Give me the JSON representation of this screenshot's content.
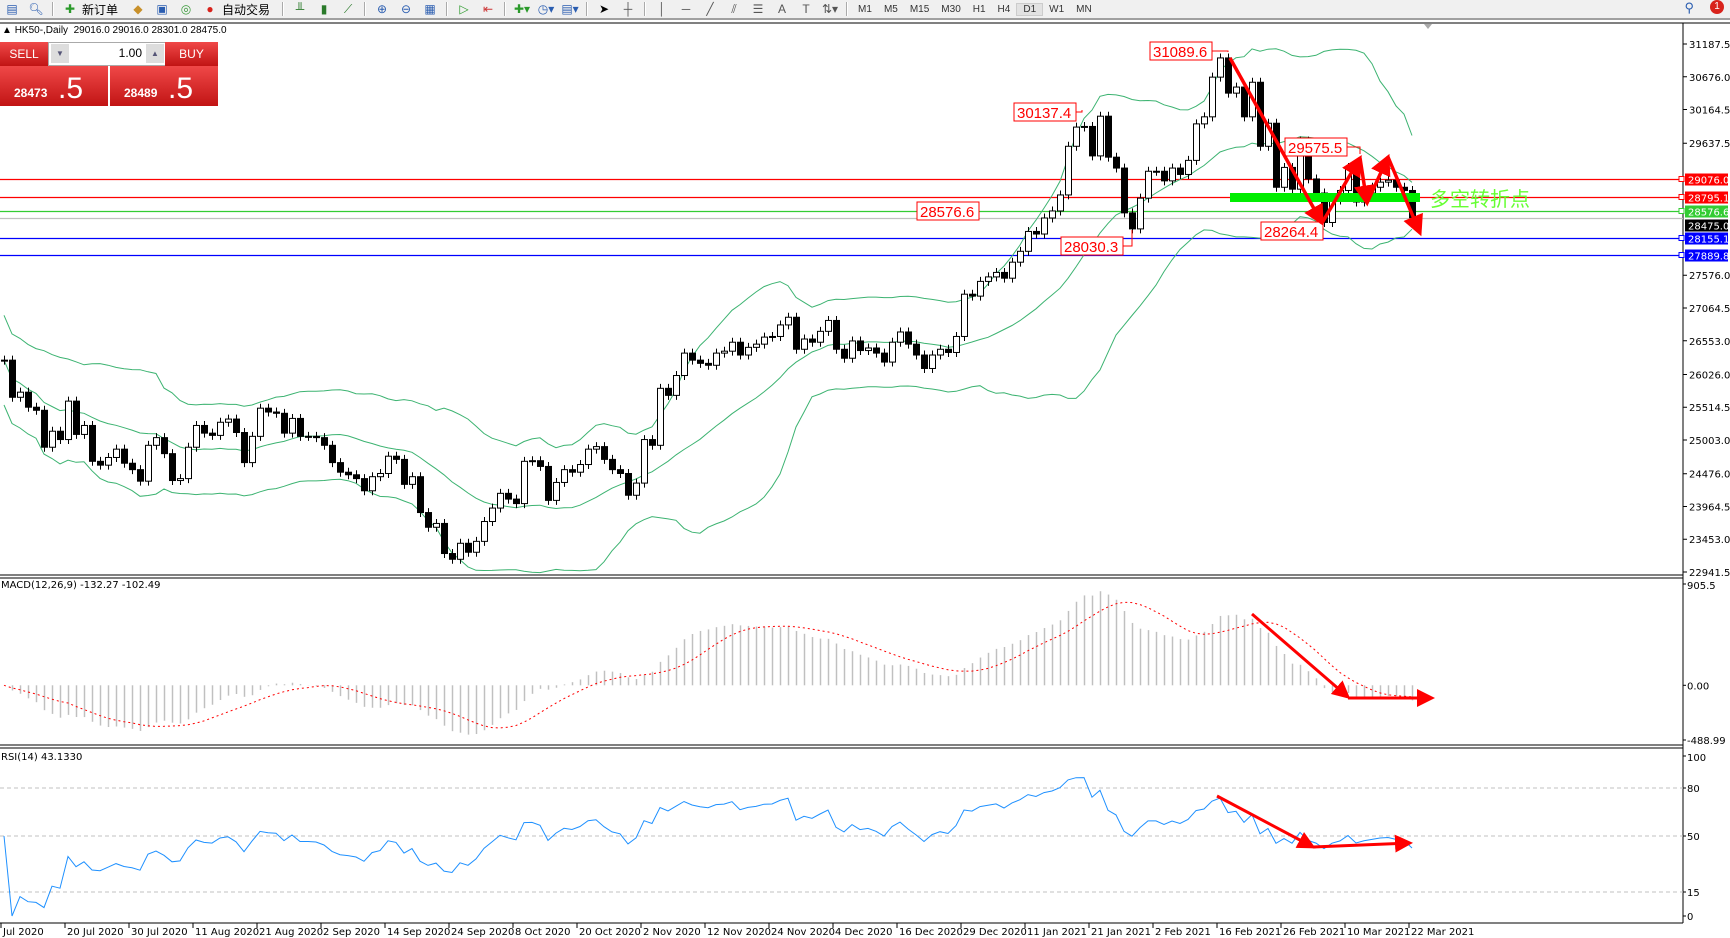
{
  "toolbar": {
    "new_order": "新订单",
    "auto_trading": "自动交易",
    "timeframes": [
      "M1",
      "M5",
      "M15",
      "M30",
      "H1",
      "H4",
      "D1",
      "W1",
      "MN"
    ],
    "active_timeframe": "D1",
    "notifications": "1",
    "icons": [
      "list-icon",
      "zoom-icon",
      "new-order-icon",
      "bucket-icon",
      "server-icon",
      "signal-icon",
      "auto-trading-icon",
      "bar-chart-icon",
      "candle-chart-icon",
      "line-chart-icon",
      "zoom-in-icon",
      "zoom-out-icon",
      "tile-icon",
      "scroll-icon",
      "shift-icon",
      "indicators-icon",
      "period-icon",
      "templates-icon",
      "cursor-icon",
      "crosshair-icon",
      "vline-icon",
      "hline-icon",
      "trendline-icon",
      "channel-icon",
      "fibo-icon",
      "text-icon",
      "label-icon",
      "arrows-icon"
    ]
  },
  "chart_header": {
    "symbol": "HK50-,Daily",
    "ohlc": "29016.0 29016.0 28301.0 28475.0"
  },
  "trade_panel": {
    "sell": "SELL",
    "buy": "BUY",
    "lot": "1.00",
    "sell_price_main": "28473",
    "sell_price_big": ".5",
    "buy_price_main": "28489",
    "buy_price_big": ".5"
  },
  "colors": {
    "bull_body": "#ffffff",
    "bear_body": "#000000",
    "bands": "#3cb371",
    "resistance": "#ff0000",
    "support": "#0000ff",
    "pivot": "#33cc33",
    "current": "#c0c0c0",
    "arrows": "#ff0000",
    "zone": "#00ee00",
    "rsi": "#1e90ff",
    "macd_hist": "#c0c0c0",
    "macd_signal": "#ff0000"
  },
  "chart_data": [
    {
      "type": "candlestick",
      "symbol": "HK50-",
      "timeframe": "Daily",
      "closes": [
        26250,
        25670,
        25750,
        25515,
        25467,
        24890,
        25140,
        25010,
        25610,
        25090,
        25230,
        24670,
        24610,
        24730,
        24860,
        24640,
        24540,
        24360,
        24920,
        25040,
        24790,
        24370,
        24400,
        24890,
        25230,
        25110,
        25075,
        25280,
        25330,
        25120,
        24650,
        25060,
        25500,
        25440,
        25420,
        25110,
        25340,
        25060,
        25060,
        25040,
        24920,
        24650,
        24500,
        24460,
        24400,
        24210,
        24430,
        24480,
        24750,
        24700,
        24310,
        24430,
        23870,
        23640,
        23700,
        23230,
        23140,
        23390,
        23250,
        23420,
        23730,
        23940,
        24170,
        24080,
        24010,
        24670,
        24680,
        24590,
        24060,
        24340,
        24540,
        24500,
        24620,
        24860,
        24900,
        24700,
        24540,
        24480,
        24140,
        24330,
        25010,
        24920,
        25810,
        25700,
        26010,
        26360,
        26250,
        26200,
        26170,
        26360,
        26390,
        26530,
        26330,
        26450,
        26500,
        26610,
        26620,
        26800,
        26920,
        26420,
        26580,
        26530,
        26700,
        26870,
        26420,
        26280,
        26550,
        26400,
        26440,
        26360,
        26220,
        26530,
        26690,
        26500,
        26330,
        26120,
        26330,
        26420,
        26370,
        26620,
        27280,
        27250,
        27480,
        27550,
        27620,
        27530,
        27780,
        27950,
        28260,
        28220,
        28470,
        28580,
        28830,
        29590,
        29890,
        29900,
        29440,
        30060,
        29420,
        29250,
        28550,
        28300,
        28780,
        29200,
        29200,
        29050,
        29250,
        29150,
        29370,
        29940,
        30050,
        30670,
        30970,
        30420,
        30515,
        30050,
        30590,
        29590,
        29950,
        28950,
        29260,
        28920,
        29670,
        29080,
        28860,
        28400,
        28750,
        28900,
        29260,
        28720,
        28860,
        28950,
        29030,
        29060,
        28950,
        28900,
        28475
      ],
      "overlay": "Bollinger Bands",
      "ylim": [
        22941.5,
        31187.5
      ],
      "y_ticks": [
        "31187.5",
        "30676.0",
        "30164.5",
        "29637.5",
        "27576.0",
        "27064.5",
        "26553.0",
        "26026.0",
        "25514.5",
        "25003.0",
        "24476.0",
        "23964.5",
        "23453.0",
        "22941.5"
      ],
      "x_labels": [
        "Jul 2020",
        "20 Jul 2020",
        "30 Jul 2020",
        "11 Aug 2020",
        "21 Aug 2020",
        "2 Sep 2020",
        "14 Sep 2020",
        "24 Sep 2020",
        "8 Oct 2020",
        "20 Oct 2020",
        "2 Nov 2020",
        "12 Nov 2020",
        "24 Nov 2020",
        "4 Dec 2020",
        "16 Dec 2020",
        "29 Dec 2020",
        "11 Jan 2021",
        "21 Jan 2021",
        "2 Feb 2021",
        "16 Feb 2021",
        "26 Feb 2021",
        "10 Mar 2021",
        "22 Mar 2021"
      ],
      "levels": [
        {
          "price": 29076.0,
          "label": "29076.0",
          "kind": "resistance"
        },
        {
          "price": 28795.1,
          "label": "28795.1",
          "kind": "resistance"
        },
        {
          "price": 28576.6,
          "label": "28576.6",
          "kind": "pivot"
        },
        {
          "price": 28475.0,
          "label": "28475.0",
          "kind": "current"
        },
        {
          "price": 28155.1,
          "label": "28155.1",
          "kind": "support"
        },
        {
          "price": 27889.8,
          "label": "27889.8",
          "kind": "support"
        }
      ],
      "annotations": [
        "31089.6",
        "30137.4",
        "28576.6",
        "28030.3",
        "28264.4",
        "29575.5"
      ],
      "zone_label": "多空转折点"
    },
    {
      "type": "macd",
      "title": "MACD(12,26,9) -132.27 -102.49",
      "ylim": [
        -488.99,
        905.5
      ],
      "y_ticks": [
        "905.5",
        "0.00",
        "-488.99"
      ]
    },
    {
      "type": "line",
      "title": "RSI(14) 43.1330",
      "ylim": [
        0,
        100
      ],
      "y_ticks": [
        "100",
        "80",
        "50",
        "15",
        "0"
      ],
      "levels": [
        80,
        50,
        15
      ]
    }
  ]
}
